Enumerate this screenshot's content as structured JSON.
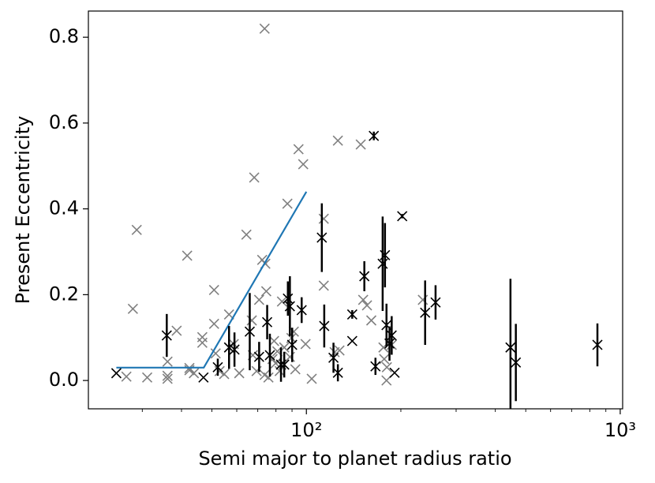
{
  "chart_data": {
    "type": "scatter",
    "x_label": "Semi major to planet radius ratio",
    "y_label": "Present Eccentricity",
    "xscale": "log",
    "xlim": [
      20.2,
      1018
    ],
    "ylim": [
      -0.066,
      0.861
    ],
    "xticks": [
      {
        "value": 100,
        "label": "10²"
      },
      {
        "value": 1000,
        "label": "10³"
      }
    ],
    "xminorticks": [
      30,
      40,
      50,
      60,
      70,
      80,
      90,
      200,
      300,
      400,
      500,
      600,
      700,
      800,
      900
    ],
    "yticks": [
      {
        "value": 0,
        "label": "0.0"
      },
      0.2,
      0.4,
      0.6,
      0.8
    ],
    "series": [
      {
        "color": "#808080",
        "marker": "x",
        "x": [
          26.7,
          28,
          28.8,
          31.1,
          36.1,
          36.1,
          36.1,
          38.6,
          41.7,
          42.4,
          42.4,
          43.8,
          46.6,
          46.6,
          50.8,
          50.8,
          51.4,
          52.9,
          54.7,
          56.7,
          58.7,
          61.1,
          64.4,
          67,
          67.5,
          68.2,
          69.4,
          70.7,
          72.3,
          73.6,
          74,
          74.5,
          73.6,
          75.7,
          78,
          78.9,
          79.8,
          80.8,
          82.2,
          83.6,
          85,
          87,
          88.6,
          89.6,
          91.2,
          92.2,
          94.4,
          97.7,
          99.4,
          104,
          113.6,
          113.6,
          123,
          126,
          127.5,
          149,
          151.7,
          156,
          161,
          176,
          177,
          180,
          180.5,
          187,
          235
        ],
        "values": [
          0.009,
          0.167,
          0.351,
          0.007,
          0.044,
          0.004,
          0.011,
          0.116,
          0.291,
          0.029,
          0.024,
          0.017,
          0.088,
          0.101,
          0.211,
          0.132,
          0.063,
          0.022,
          0.015,
          0.154,
          0.085,
          0.017,
          0.34,
          0.14,
          0.059,
          0.473,
          0.022,
          0.188,
          0.281,
          0.82,
          0.272,
          0.208,
          0.013,
          0.007,
          0.05,
          0.092,
          0.04,
          0.068,
          0.022,
          0.184,
          0.077,
          0.412,
          0.055,
          0.099,
          0.114,
          0.026,
          0.539,
          0.504,
          0.085,
          0.004,
          0.377,
          0.221,
          0.066,
          0.559,
          0.07,
          0.55,
          0.188,
          0.175,
          0.14,
          0.077,
          0.05,
          0,
          0.031,
          0.083,
          0.188
        ]
      },
      {
        "color": "#1f77b4",
        "line": true,
        "x": [
          24.8,
          47.1,
          100
        ],
        "values": [
          0.03,
          0.03,
          0.44
        ]
      },
      {
        "color": "#000000",
        "marker": "x",
        "x": [
          24.8,
          35.9,
          47,
          52.2,
          56.7,
          59,
          66,
          70.7,
          75,
          76.5,
          83,
          85,
          87.3,
          88.6,
          90.1,
          96.6,
          112,
          114,
          122,
          126,
          140,
          140,
          153,
          164,
          166,
          175,
          178,
          180,
          184,
          187,
          191,
          202,
          239,
          258,
          447,
          465,
          846
        ],
        "values": [
          0.017,
          0.105,
          0.007,
          0.031,
          0.077,
          0.072,
          0.114,
          0.055,
          0.136,
          0.059,
          0.037,
          0.037,
          0.191,
          0.173,
          0.083,
          0.164,
          0.333,
          0.127,
          0.053,
          0.018,
          0.092,
          0.154,
          0.243,
          0.57,
          0.033,
          0.272,
          0.292,
          0.129,
          0.086,
          0.105,
          0.018,
          0.383,
          0.158,
          0.182,
          0.077,
          0.042,
          0.083
        ],
        "errors": [
          0,
          0.05,
          0,
          0.02,
          0.05,
          0.04,
          0.09,
          0.035,
          0.04,
          0.05,
          0.04,
          0.03,
          0.04,
          0.07,
          0.04,
          0.03,
          0.08,
          0.05,
          0.035,
          0.02,
          0,
          0.01,
          0.035,
          0.01,
          0.02,
          0.11,
          0.075,
          0.05,
          0.04,
          0.045,
          0,
          0.005,
          0.075,
          0.04,
          0.16,
          0.09,
          0.05
        ]
      }
    ]
  }
}
